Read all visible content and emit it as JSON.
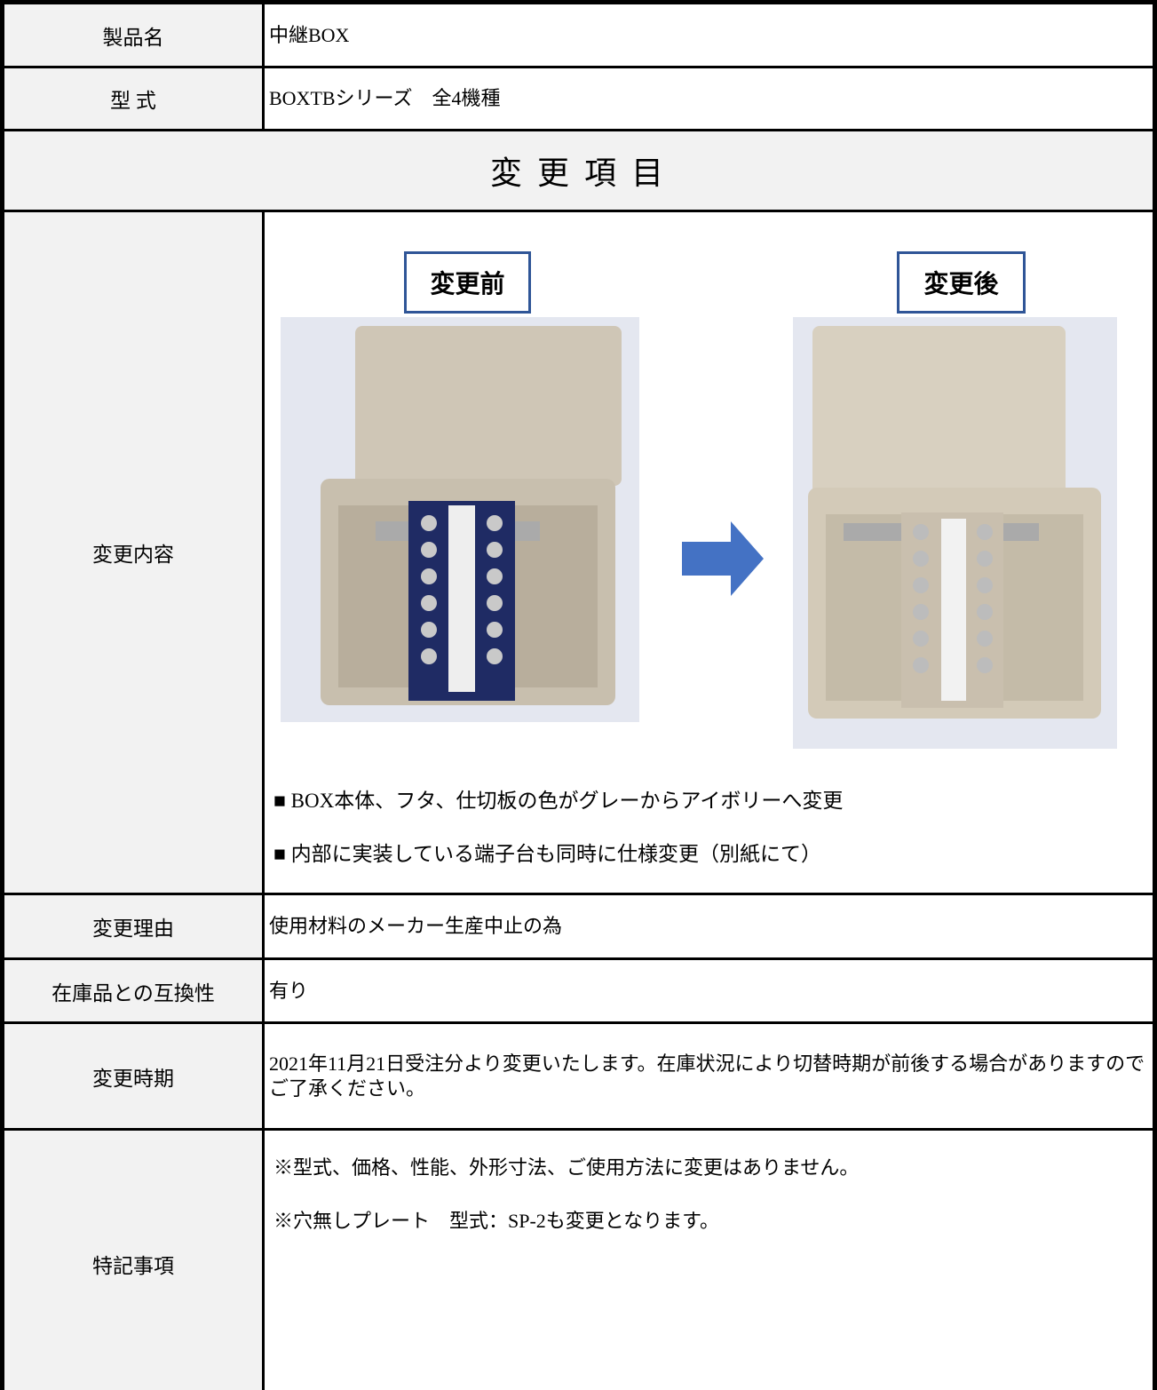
{
  "rows_top": [
    {
      "label": "製品名",
      "value": "中継BOX"
    },
    {
      "label": "型 式",
      "value": "BOXTBシリーズ　全4機種"
    }
  ],
  "section_title": "変 更 項 目",
  "change": {
    "label": "変更内容",
    "before": "変更前",
    "after": "変更後",
    "notes": [
      "■ BOX本体、フタ、仕切板の色がグレーからアイボリーへ変更",
      "■ 内部に実装している端子台も同時に仕様変更（別紙にて）"
    ]
  },
  "rows_bottom": [
    {
      "label": "変更理由",
      "lines": [
        "使用材料のメーカー生産中止の為"
      ]
    },
    {
      "label": "在庫品との互換性",
      "lines": [
        "有り"
      ]
    },
    {
      "label": "変更時期",
      "lines": [
        "2021年11月21日受注分より変更いたします。在庫状況により切替時期が前後する場合がありますのでご了承ください。"
      ]
    },
    {
      "label": "特記事項",
      "lines": [
        "※型式、価格、性能、外形寸法、ご使用方法に変更はありません。",
        "※穴無しプレート　型式：SP-2も変更となります。"
      ]
    }
  ]
}
